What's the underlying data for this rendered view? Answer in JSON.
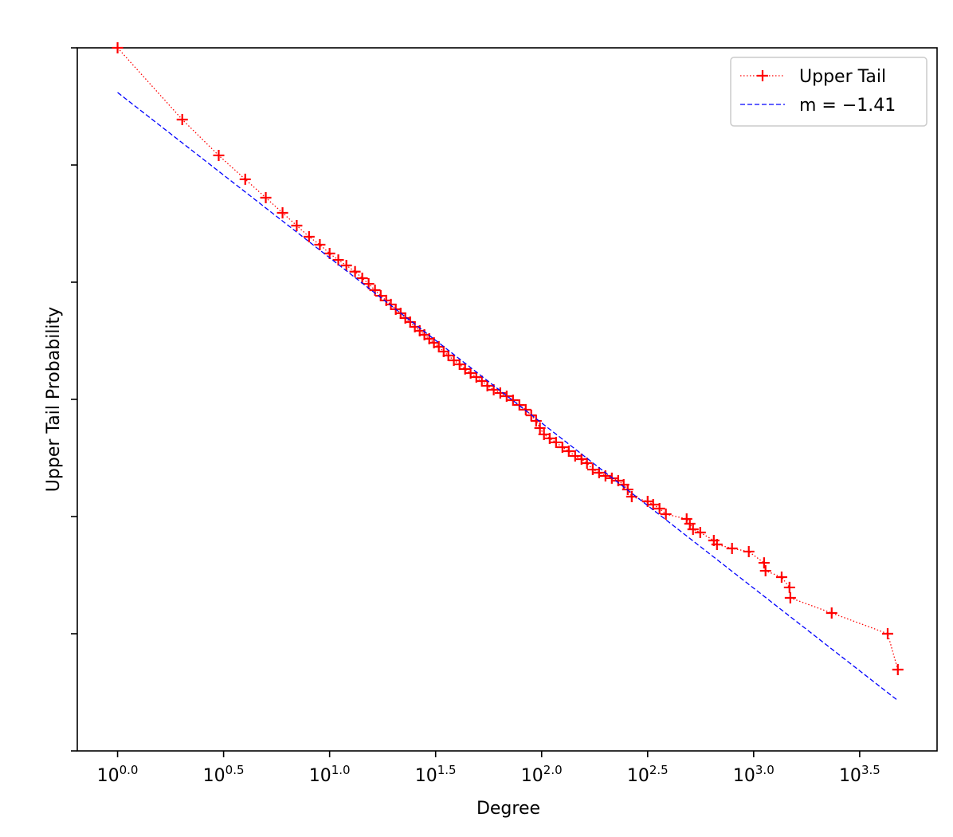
{
  "chart_data": {
    "type": "line",
    "xlabel": "Degree",
    "ylabel": "Upper Tail Probability",
    "xlim": [
      -0.19,
      3.865
    ],
    "ylim": [
      -6,
      0
    ],
    "xticks": [
      {
        "value": 0,
        "label": "10^0.0"
      },
      {
        "value": 0.5,
        "label": "10^0.5"
      },
      {
        "value": 1,
        "label": "10^1.0"
      },
      {
        "value": 1.5,
        "label": "10^1.5"
      },
      {
        "value": 2,
        "label": "10^2.0"
      },
      {
        "value": 2.5,
        "label": "10^2.5"
      },
      {
        "value": 3,
        "label": "10^3.0"
      },
      {
        "value": 3.5,
        "label": "10^3.5"
      }
    ],
    "yticks": [
      -6,
      -5,
      -4,
      -3,
      -2,
      -1,
      0
    ],
    "legend": "upper right",
    "series": [
      {
        "name": "Upper Tail",
        "color": "#ff0000",
        "style": "dotted",
        "marker": "+",
        "x": [
          0,
          0.305,
          0.477,
          0.602,
          0.699,
          0.778,
          0.845,
          0.903,
          0.954,
          1.0,
          1.041,
          1.079,
          1.12,
          1.154,
          1.184,
          1.214,
          1.241,
          1.267,
          1.289,
          1.312,
          1.335,
          1.357,
          1.38,
          1.402,
          1.425,
          1.447,
          1.47,
          1.492,
          1.515,
          1.538,
          1.56,
          1.586,
          1.613,
          1.639,
          1.665,
          1.692,
          1.718,
          1.744,
          1.774,
          1.805,
          1.835,
          1.865,
          1.895,
          1.925,
          1.951,
          1.974,
          1.992,
          2.011,
          2.038,
          2.068,
          2.098,
          2.128,
          2.158,
          2.188,
          2.214,
          2.241,
          2.271,
          2.301,
          2.331,
          2.361,
          2.387,
          2.406,
          2.425,
          2.5,
          2.526,
          2.556,
          2.586,
          2.684,
          2.699,
          2.714,
          2.748,
          2.812,
          2.827,
          2.898,
          2.977,
          3.049,
          3.056,
          3.132,
          3.169,
          3.173,
          3.368,
          3.632,
          3.68
        ],
        "values": [
          0,
          -0.612,
          -0.918,
          -1.122,
          -1.279,
          -1.408,
          -1.517,
          -1.612,
          -1.68,
          -1.755,
          -1.81,
          -1.857,
          -1.91,
          -1.966,
          -2.014,
          -2.068,
          -2.116,
          -2.156,
          -2.19,
          -2.231,
          -2.265,
          -2.306,
          -2.34,
          -2.381,
          -2.415,
          -2.449,
          -2.483,
          -2.517,
          -2.551,
          -2.592,
          -2.626,
          -2.667,
          -2.701,
          -2.741,
          -2.776,
          -2.81,
          -2.844,
          -2.884,
          -2.918,
          -2.946,
          -2.973,
          -3.007,
          -3.048,
          -3.088,
          -3.136,
          -3.184,
          -3.245,
          -3.299,
          -3.333,
          -3.367,
          -3.408,
          -3.442,
          -3.483,
          -3.51,
          -3.544,
          -3.599,
          -3.626,
          -3.653,
          -3.673,
          -3.694,
          -3.728,
          -3.769,
          -3.83,
          -3.871,
          -3.898,
          -3.932,
          -3.98,
          -4.02,
          -4.061,
          -4.109,
          -4.136,
          -4.204,
          -4.238,
          -4.272,
          -4.299,
          -4.395,
          -4.463,
          -4.517,
          -4.605,
          -4.694,
          -4.823,
          -5.0,
          -5.306
        ]
      },
      {
        "name": "m = −1.41",
        "color": "#0000ff",
        "style": "dashed",
        "marker": null,
        "x": [
          0,
          3.68
        ],
        "values": [
          -0.381,
          -5.57
        ]
      }
    ]
  }
}
